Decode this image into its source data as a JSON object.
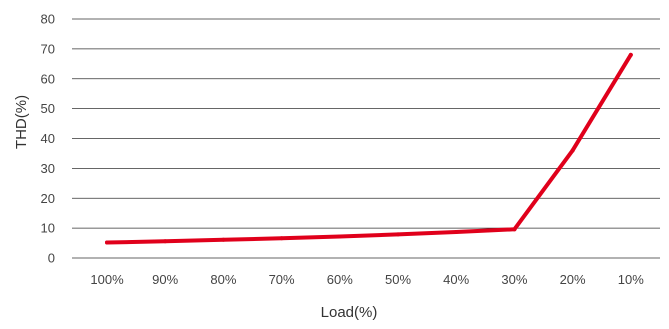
{
  "chart_data": {
    "type": "line",
    "title": "",
    "xlabel": "Load(%)",
    "ylabel": "THD(%)",
    "categories": [
      "100%",
      "90%",
      "80%",
      "70%",
      "60%",
      "50%",
      "40%",
      "30%",
      "20%",
      "10%"
    ],
    "series": [
      {
        "values": [
          5.2,
          5.6,
          6.1,
          6.6,
          7.2,
          7.9,
          8.7,
          9.6,
          36,
          68
        ],
        "color": "#e0001b"
      }
    ],
    "ylim": [
      0,
      80
    ],
    "yticks": [
      0,
      10,
      20,
      30,
      40,
      50,
      60,
      70,
      80
    ],
    "grid": "horizontal",
    "legend": "none"
  }
}
